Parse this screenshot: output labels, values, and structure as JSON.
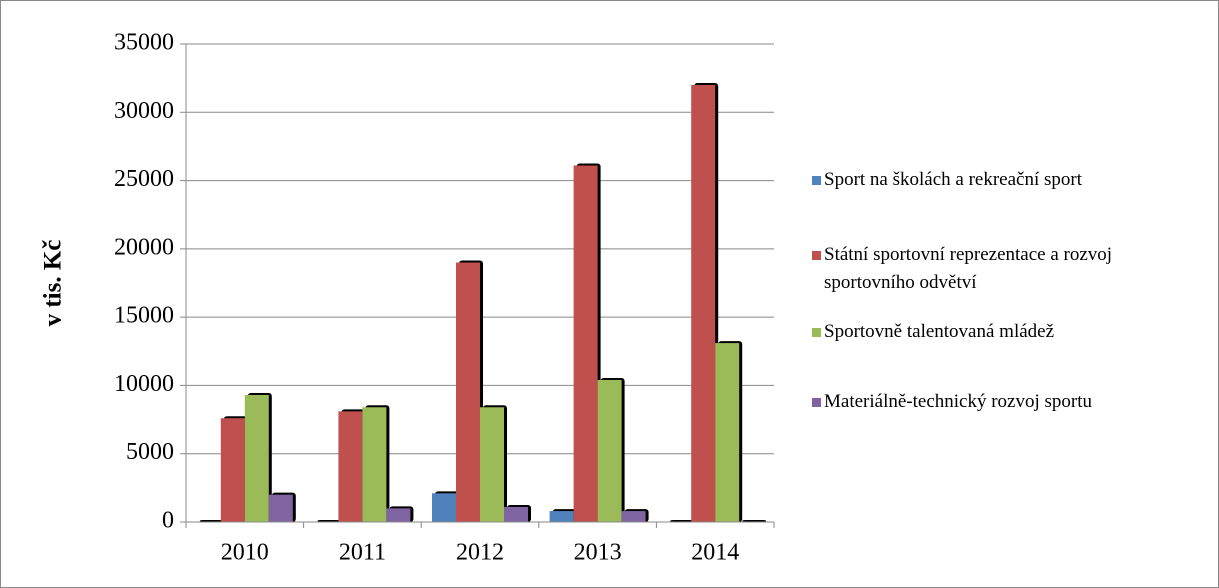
{
  "chart_data": {
    "type": "bar",
    "y_label": "v tis. Kč",
    "categories": [
      "2010",
      "2011",
      "2012",
      "2013",
      "2014"
    ],
    "series": [
      {
        "name": "Sport na školách a rekreační sport",
        "color": "#4f81bd",
        "values": [
          0,
          0,
          2100,
          800,
          0
        ]
      },
      {
        "name": "Státní sportovní reprezentace a rozvoj sportovního odvětví",
        "color": "#c0504d",
        "values": [
          7600,
          8100,
          19000,
          26100,
          32000
        ]
      },
      {
        "name": "Sportovně talentovaná mládež",
        "color": "#9bbb59",
        "values": [
          9300,
          8400,
          8400,
          10400,
          13100
        ]
      },
      {
        "name": "Materiálně-technický rozvoj sportu",
        "color": "#8064a2",
        "values": [
          2000,
          1000,
          1100,
          800,
          0
        ]
      }
    ],
    "ylim": [
      0,
      35000
    ],
    "yticks": [
      0,
      5000,
      10000,
      15000,
      20000,
      25000,
      30000,
      35000
    ],
    "grid": true,
    "legend": "right"
  }
}
